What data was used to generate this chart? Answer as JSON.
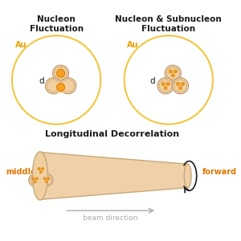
{
  "bg_color": "#ffffff",
  "title_color": "#1a1a1a",
  "au_color": "#e8a000",
  "orange_dark": "#d07000",
  "orange_mid": "#f5a020",
  "orange_light": "#fad090",
  "nucleon_fill": "#f0d0a0",
  "nucleon_stroke": "#b8906a",
  "circle_au_color": "#f0c840",
  "peach_fill": "#f0d0a8",
  "cylinder_fill": "#f0d0a8",
  "cylinder_stroke": "#c8a878",
  "gray_arrow": "#aaaaaa",
  "black": "#1a1a1a",
  "label_orange": "#e07800",
  "left_title": "Nucleon\nFluctuation",
  "right_title": "Nucleon & Subnucleon\nFluctuation",
  "bottom_title": "Longitudinal Decorrelation",
  "middle_label": "middle",
  "forward_label": "forward",
  "beam_label": "beam direction",
  "au_label": "Au",
  "d_label": "d"
}
